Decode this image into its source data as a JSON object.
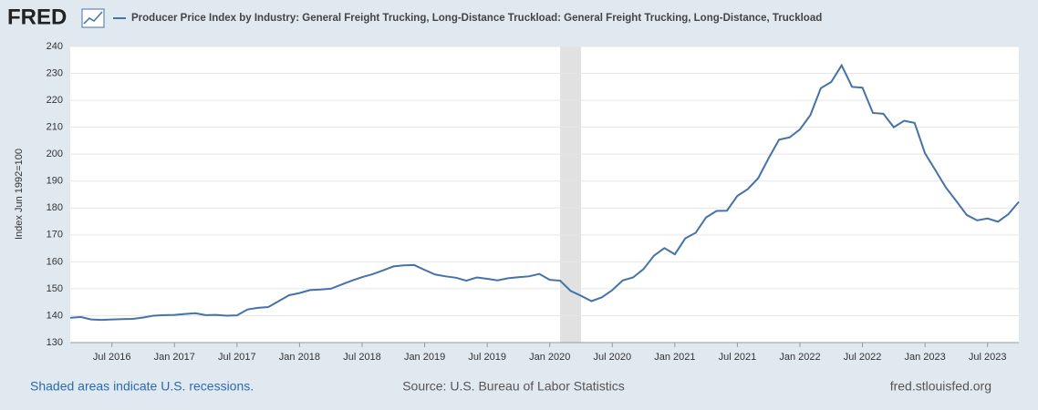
{
  "chart_data": {
    "type": "line",
    "logo": "FRED",
    "title": "Producer Price Index by Industry: General Freight Trucking, Long-Distance Truckload: General Freight Trucking, Long-Distance, Truckload",
    "y_label": "Index Jun 1992=100",
    "footer_left": "Shaded areas indicate U.S. recessions.",
    "footer_center": "Source: U.S. Bureau of Labor Statistics",
    "footer_right": "fred.stlouisfed.org",
    "x": [
      "2016-03",
      "2016-04",
      "2016-05",
      "2016-06",
      "2016-07",
      "2016-08",
      "2016-09",
      "2016-10",
      "2016-11",
      "2016-12",
      "2017-01",
      "2017-02",
      "2017-03",
      "2017-04",
      "2017-05",
      "2017-06",
      "2017-07",
      "2017-08",
      "2017-09",
      "2017-10",
      "2017-11",
      "2017-12",
      "2018-01",
      "2018-02",
      "2018-03",
      "2018-04",
      "2018-05",
      "2018-06",
      "2018-07",
      "2018-08",
      "2018-09",
      "2018-10",
      "2018-11",
      "2018-12",
      "2019-01",
      "2019-02",
      "2019-03",
      "2019-04",
      "2019-05",
      "2019-06",
      "2019-07",
      "2019-08",
      "2019-09",
      "2019-10",
      "2019-11",
      "2019-12",
      "2020-01",
      "2020-02",
      "2020-03",
      "2020-04",
      "2020-05",
      "2020-06",
      "2020-07",
      "2020-08",
      "2020-09",
      "2020-10",
      "2020-11",
      "2020-12",
      "2021-01",
      "2021-02",
      "2021-03",
      "2021-04",
      "2021-05",
      "2021-06",
      "2021-07",
      "2021-08",
      "2021-09",
      "2021-10",
      "2021-11",
      "2021-12",
      "2022-01",
      "2022-02",
      "2022-03",
      "2022-04",
      "2022-05",
      "2022-06",
      "2022-07",
      "2022-08",
      "2022-09",
      "2022-10",
      "2022-11",
      "2022-12",
      "2023-01",
      "2023-02",
      "2023-03",
      "2023-04",
      "2023-05",
      "2023-06",
      "2023-07",
      "2023-08",
      "2023-09",
      "2023-10"
    ],
    "series": [
      {
        "name": "Producer Price Index by Industry: General Freight Trucking, Long-Distance Truckload: General Freight Trucking, Long-Distance, Truckload",
        "color": "#4572a7",
        "values": [
          139.2,
          139.5,
          138.6,
          138.4,
          138.6,
          138.7,
          138.8,
          139.3,
          140.0,
          140.2,
          140.3,
          140.6,
          140.9,
          140.2,
          140.3,
          140.0,
          140.1,
          142.3,
          142.9,
          143.2,
          145.4,
          147.6,
          148.4,
          149.5,
          149.7,
          150.0,
          151.5,
          153.0,
          154.3,
          155.4,
          156.8,
          158.3,
          158.7,
          158.8,
          157.0,
          155.3,
          154.6,
          154.1,
          153.0,
          154.2,
          153.7,
          153.1,
          153.9,
          154.3,
          154.6,
          155.5,
          153.3,
          153.0,
          149.2,
          147.4,
          145.4,
          146.8,
          149.5,
          153.1,
          154.2,
          157.3,
          162.3,
          165.1,
          162.8,
          168.7,
          170.8,
          176.5,
          178.9,
          179.0,
          184.5,
          187.0,
          191.1,
          198.5,
          205.4,
          206.2,
          209.2,
          214.5,
          224.5,
          226.8,
          233.0,
          225.0,
          224.7,
          215.3,
          215.0,
          210.0,
          212.4,
          211.6,
          200.3,
          194.0,
          187.6,
          182.6,
          177.4,
          175.4,
          176.1,
          174.9,
          177.7,
          182.3
        ]
      }
    ],
    "recessions": [
      {
        "start": "2020-02",
        "end": "2020-04"
      }
    ],
    "xlim": [
      "2016-03",
      "2023-10"
    ],
    "xticks": [
      {
        "value": "2016-07",
        "label": "Jul 2016"
      },
      {
        "value": "2017-01",
        "label": "Jan 2017"
      },
      {
        "value": "2017-07",
        "label": "Jul 2017"
      },
      {
        "value": "2018-01",
        "label": "Jan 2018"
      },
      {
        "value": "2018-07",
        "label": "Jul 2018"
      },
      {
        "value": "2019-01",
        "label": "Jan 2019"
      },
      {
        "value": "2019-07",
        "label": "Jul 2019"
      },
      {
        "value": "2020-01",
        "label": "Jan 2020"
      },
      {
        "value": "2020-07",
        "label": "Jul 2020"
      },
      {
        "value": "2021-01",
        "label": "Jan 2021"
      },
      {
        "value": "2021-07",
        "label": "Jul 2021"
      },
      {
        "value": "2022-01",
        "label": "Jan 2022"
      },
      {
        "value": "2022-07",
        "label": "Jul 2022"
      },
      {
        "value": "2023-01",
        "label": "Jan 2023"
      },
      {
        "value": "2023-07",
        "label": "Jul 2023"
      }
    ],
    "ylim": [
      130,
      240
    ],
    "yticks": [
      130,
      140,
      150,
      160,
      170,
      180,
      190,
      200,
      210,
      220,
      230,
      240
    ],
    "grid": true
  }
}
